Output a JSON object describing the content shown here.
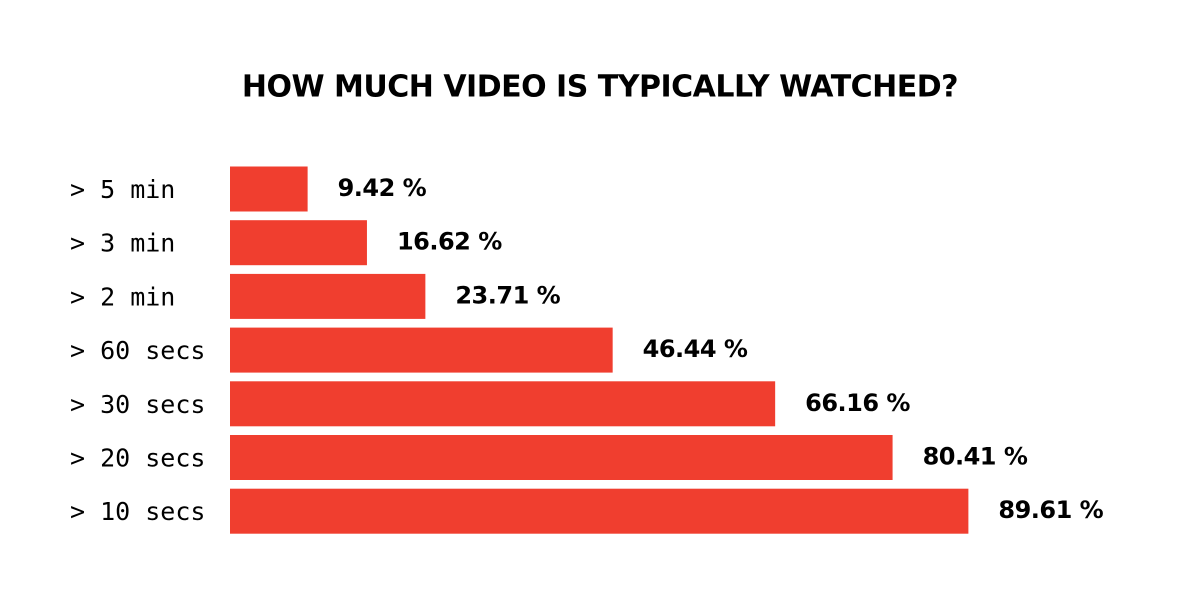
{
  "chart_data": {
    "type": "bar",
    "orientation": "horizontal",
    "title": "HOW MUCH VIDEO IS TYPICALLY WATCHED?",
    "categories": [
      "> 5 min",
      "> 3 min",
      "> 2 min",
      "> 60 secs",
      "> 30 secs",
      "> 20 secs",
      "> 10 secs"
    ],
    "values": [
      9.42,
      16.62,
      23.71,
      46.44,
      66.16,
      80.41,
      89.61
    ],
    "value_labels": [
      "9.42 %",
      "16.62 %",
      "23.71 %",
      "46.44 %",
      "66.16 %",
      "80.41 %",
      "89.61 %"
    ],
    "color": "#f03e2f"
  }
}
